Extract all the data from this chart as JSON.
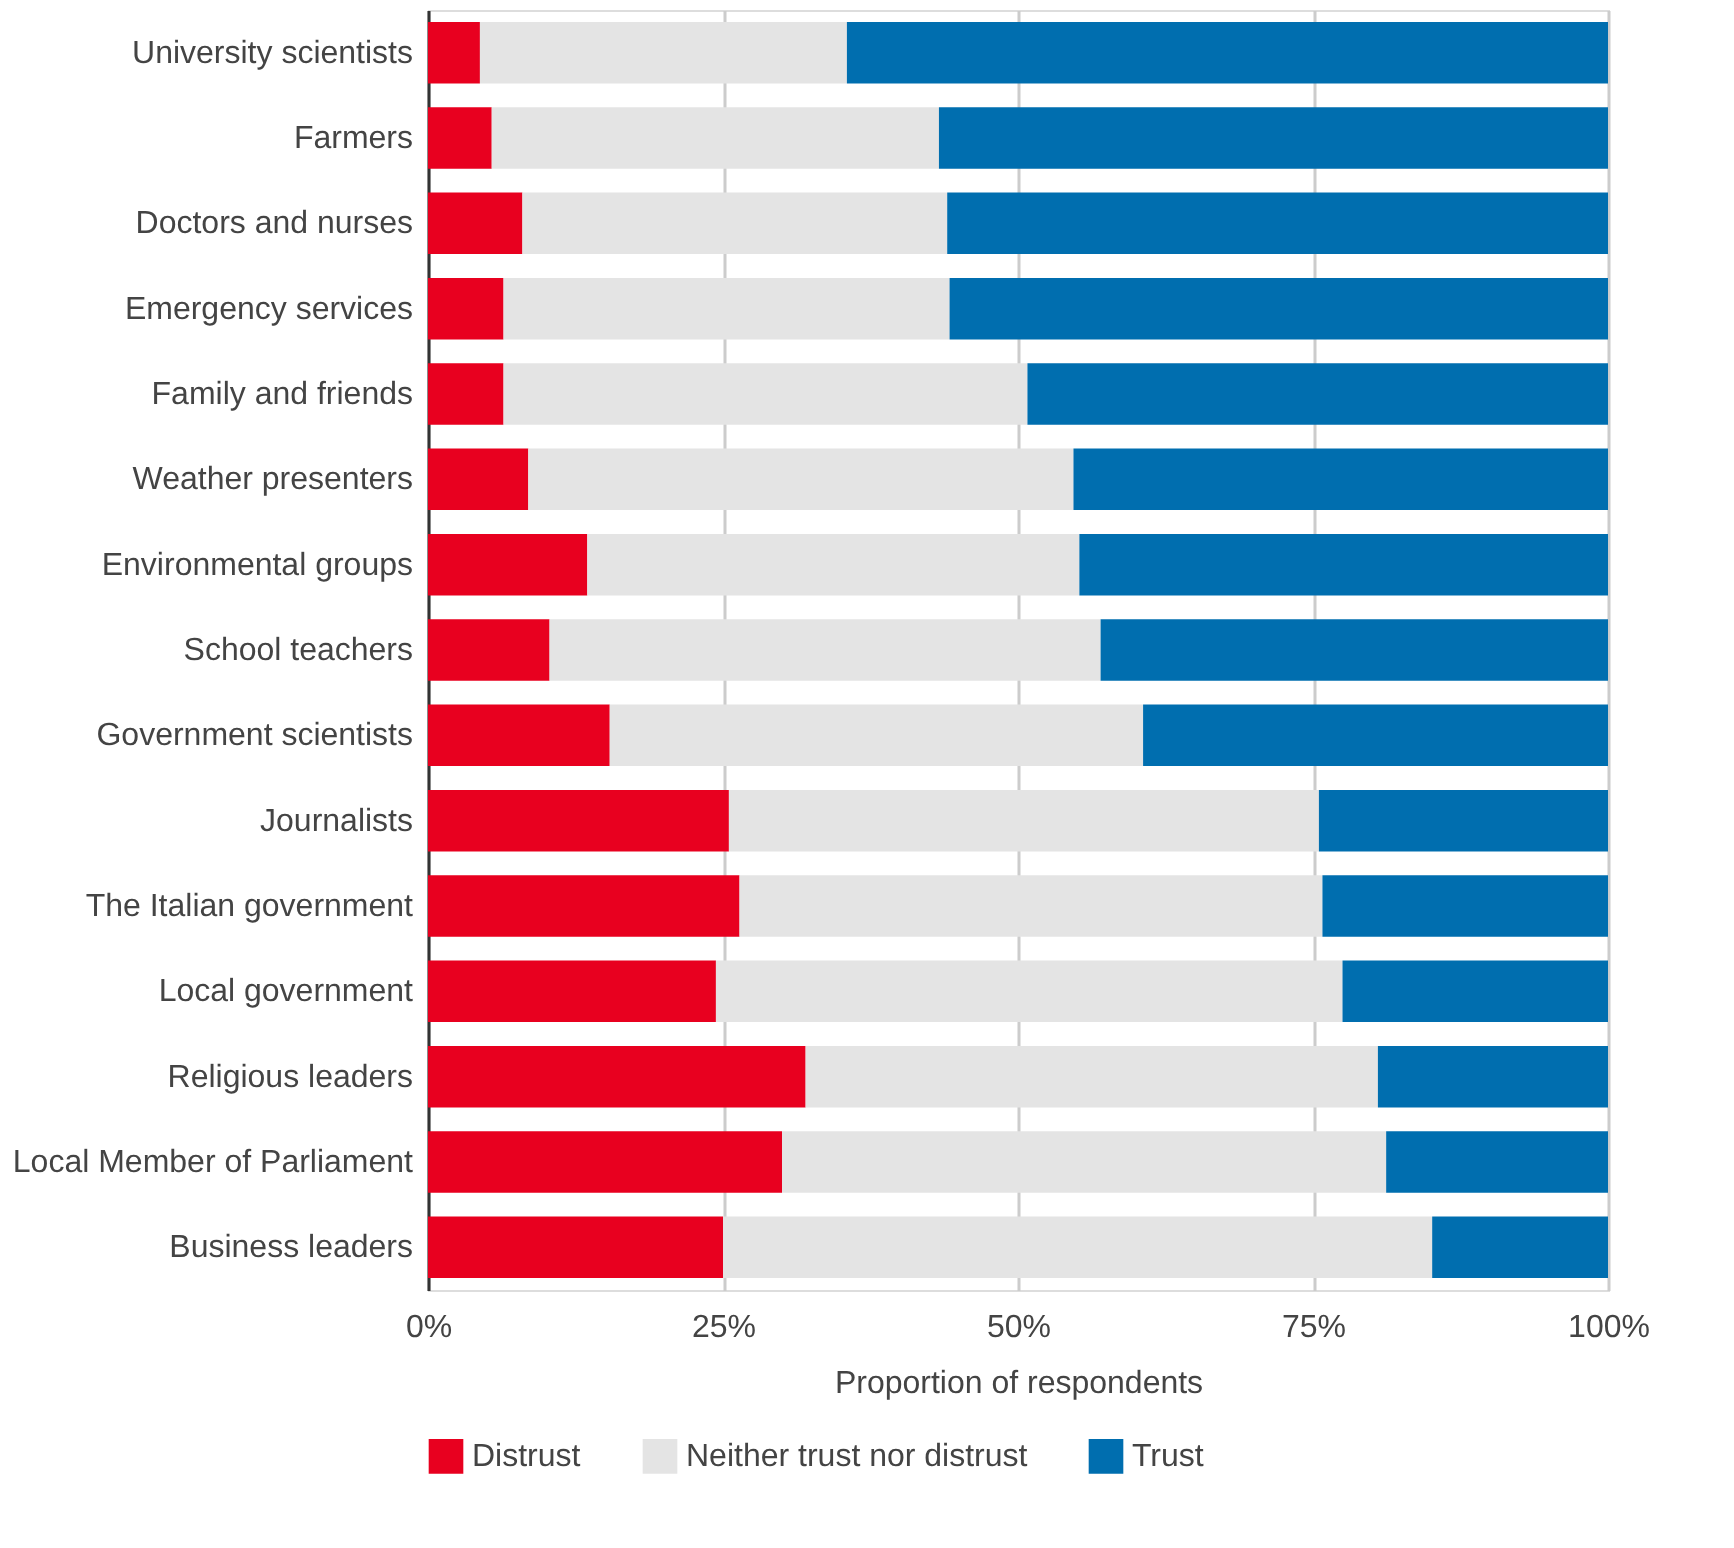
{
  "chart_data": {
    "type": "bar",
    "orientation": "horizontal",
    "stacked": true,
    "xlabel": "Proportion of respondents",
    "categories": [
      "University scientists",
      "Farmers",
      "Doctors and nurses",
      "Emergency services",
      "Family and friends",
      "Weather presenters",
      "Environmental groups",
      "School teachers",
      "Government scientists",
      "Journalists",
      "The Italian government",
      "Local government",
      "Religious leaders",
      "Local Member of Parliament",
      "Business leaders"
    ],
    "series": [
      {
        "name": "Distrust",
        "color": "#e8001f",
        "values": [
          4.4,
          5.4,
          8.0,
          6.4,
          6.4,
          8.5,
          13.5,
          10.3,
          15.4,
          25.5,
          26.4,
          24.4,
          32.0,
          30.0,
          25.0
        ]
      },
      {
        "name": "Neither trust nor distrust",
        "color": "#e4e4e4",
        "values": [
          31.1,
          37.9,
          36.0,
          37.8,
          44.4,
          46.2,
          41.7,
          46.7,
          45.2,
          50.0,
          49.4,
          53.1,
          48.5,
          51.2,
          60.1
        ]
      },
      {
        "name": "Trust",
        "color": "#006eaf",
        "values": [
          64.5,
          56.7,
          56.0,
          55.8,
          49.2,
          45.3,
          44.8,
          43.0,
          39.4,
          24.5,
          24.2,
          22.5,
          19.5,
          18.8,
          14.9
        ]
      }
    ],
    "xlim": [
      0,
      100
    ],
    "xticks": [
      {
        "value": 0,
        "label": "0%"
      },
      {
        "value": 25,
        "label": "25%"
      },
      {
        "value": 50,
        "label": "50%"
      },
      {
        "value": 75,
        "label": "75%"
      },
      {
        "value": 100,
        "label": "100%"
      }
    ],
    "grid": "x",
    "legend": "bottom"
  }
}
